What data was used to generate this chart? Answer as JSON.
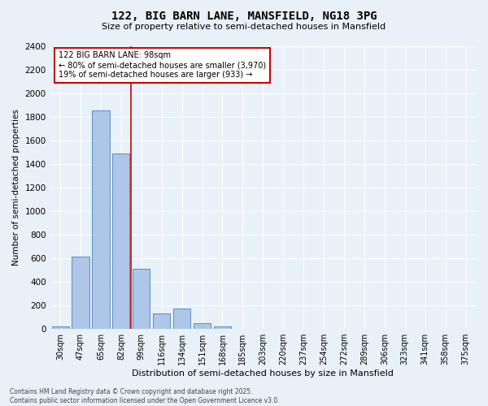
{
  "title_line1": "122, BIG BARN LANE, MANSFIELD, NG18 3PG",
  "title_line2": "Size of property relative to semi-detached houses in Mansfield",
  "xlabel": "Distribution of semi-detached houses by size in Mansfield",
  "ylabel": "Number of semi-detached properties",
  "categories": [
    "30sqm",
    "47sqm",
    "65sqm",
    "82sqm",
    "99sqm",
    "116sqm",
    "134sqm",
    "151sqm",
    "168sqm",
    "185sqm",
    "203sqm",
    "220sqm",
    "237sqm",
    "254sqm",
    "272sqm",
    "289sqm",
    "306sqm",
    "323sqm",
    "341sqm",
    "358sqm",
    "375sqm"
  ],
  "values": [
    20,
    610,
    1850,
    1490,
    510,
    130,
    170,
    50,
    20,
    0,
    0,
    0,
    0,
    0,
    0,
    0,
    0,
    0,
    0,
    0,
    0
  ],
  "bar_color": "#aec6e8",
  "bar_edge_color": "#5a8fc2",
  "vline_color": "#cc0000",
  "annotation_text": "122 BIG BARN LANE: 98sqm\n← 80% of semi-detached houses are smaller (3,970)\n19% of semi-detached houses are larger (933) →",
  "annotation_box_color": "#cc0000",
  "ylim": [
    0,
    2400
  ],
  "yticks": [
    0,
    200,
    400,
    600,
    800,
    1000,
    1200,
    1400,
    1600,
    1800,
    2000,
    2200,
    2400
  ],
  "background_color": "#e8f0f8",
  "grid_color": "#ffffff",
  "footer_line1": "Contains HM Land Registry data © Crown copyright and database right 2025.",
  "footer_line2": "Contains public sector information licensed under the Open Government Licence v3.0."
}
